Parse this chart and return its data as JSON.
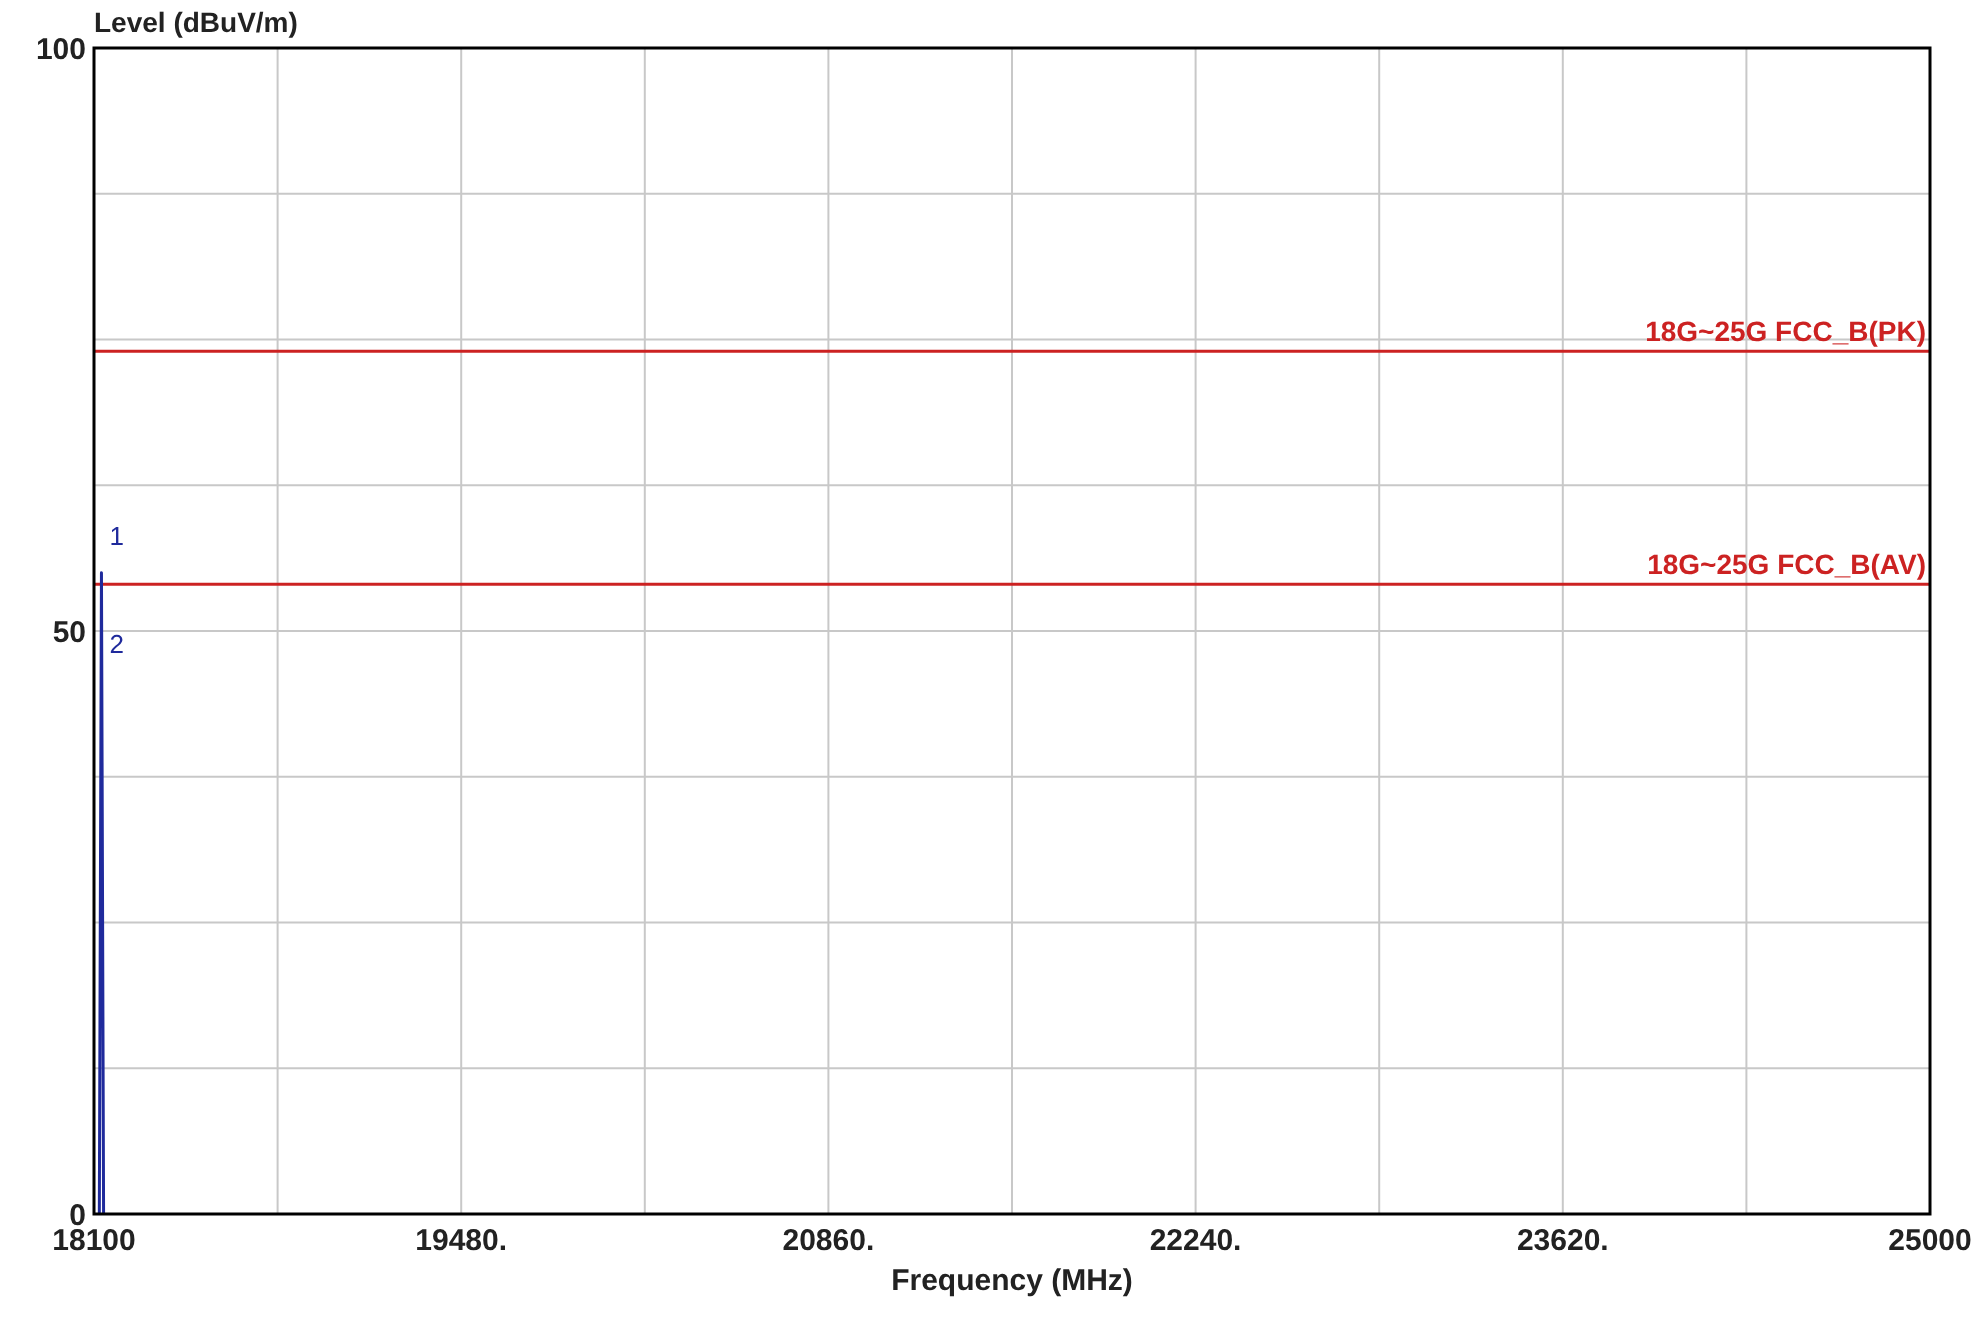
{
  "chart_data": {
    "type": "line",
    "xlabel": "Frequency (MHz)",
    "ylabel": "Level (dBuV/m)",
    "xlim": [
      18100,
      25000
    ],
    "ylim": [
      0,
      100
    ],
    "xticks": [
      18100,
      {
        "value": 19480,
        "label": "19480."
      },
      {
        "value": 20860,
        "label": "20860."
      },
      {
        "value": 22240,
        "label": "22240."
      },
      {
        "value": 23620,
        "label": "23620."
      },
      25000
    ],
    "yticks": [
      0,
      {
        "value": 12.5,
        "label": null
      },
      {
        "value": 25,
        "label": null
      },
      {
        "value": 37.5,
        "label": null
      },
      50,
      {
        "value": 62.5,
        "label": null
      },
      {
        "value": 75,
        "label": null
      },
      {
        "value": 87.5,
        "label": null
      },
      100
    ],
    "grid": true,
    "series": [
      {
        "color": "#1f2a9c",
        "x": [
          18120,
          18128,
          18136
        ],
        "values": [
          0,
          55,
          0
        ]
      }
    ],
    "ref_lines": [
      {
        "axis": "y",
        "value": 74,
        "label": "18G~25G FCC_B(PK)",
        "color": "#cc2222"
      },
      {
        "axis": "y",
        "value": 54,
        "label": "18G~25G FCC_B(AV)",
        "color": "#cc2222"
      }
    ],
    "annotations": [
      "1",
      "2"
    ]
  }
}
